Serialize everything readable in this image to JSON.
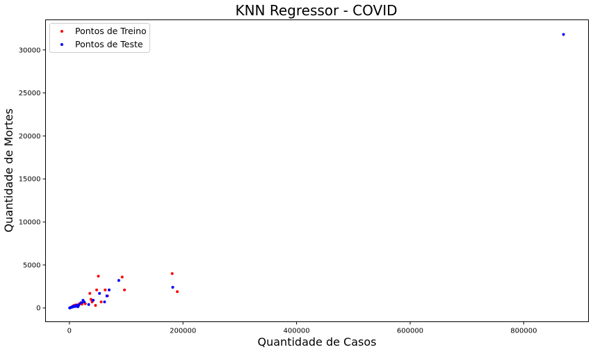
{
  "chart_data": {
    "type": "scatter",
    "title": "KNN Regressor - COVID",
    "xlabel": "Quantidade de Casos",
    "ylabel": "Quantidade de Mortes",
    "xlim": [
      -42000,
      914000
    ],
    "ylim": [
      -1600,
      33500
    ],
    "xticks": [
      0,
      200000,
      400000,
      600000,
      800000
    ],
    "xtick_labels": [
      "0",
      "200000",
      "400000",
      "600000",
      "800000"
    ],
    "yticks": [
      0,
      5000,
      10000,
      15000,
      20000,
      25000,
      30000
    ],
    "ytick_labels": [
      "0",
      "5000",
      "10000",
      "15000",
      "20000",
      "25000",
      "30000"
    ],
    "grid": false,
    "legend_position": "top-left",
    "series": [
      {
        "name": "Pontos de Treino",
        "color": "#ff0000",
        "points": [
          [
            1000,
            20
          ],
          [
            2000,
            50
          ],
          [
            3000,
            80
          ],
          [
            4000,
            100
          ],
          [
            5000,
            150
          ],
          [
            6000,
            120
          ],
          [
            7000,
            250
          ],
          [
            8000,
            200
          ],
          [
            9000,
            300
          ],
          [
            10000,
            280
          ],
          [
            11000,
            350
          ],
          [
            12000,
            300
          ],
          [
            14000,
            350
          ],
          [
            16000,
            250
          ],
          [
            18000,
            500
          ],
          [
            20000,
            600
          ],
          [
            22000,
            450
          ],
          [
            25000,
            700
          ],
          [
            28000,
            500
          ],
          [
            36000,
            1700
          ],
          [
            38000,
            1000
          ],
          [
            40000,
            700
          ],
          [
            46000,
            300
          ],
          [
            48000,
            2100
          ],
          [
            51000,
            3700
          ],
          [
            56000,
            700
          ],
          [
            63000,
            2100
          ],
          [
            67000,
            1400
          ],
          [
            93000,
            3600
          ],
          [
            97000,
            2100
          ],
          [
            181000,
            4000
          ],
          [
            190000,
            1900
          ]
        ]
      },
      {
        "name": "Pontos de Teste",
        "color": "#0000ff",
        "points": [
          [
            500,
            10
          ],
          [
            1500,
            30
          ],
          [
            2500,
            60
          ],
          [
            3500,
            90
          ],
          [
            4500,
            110
          ],
          [
            6000,
            180
          ],
          [
            7500,
            150
          ],
          [
            9000,
            220
          ],
          [
            11000,
            180
          ],
          [
            13000,
            300
          ],
          [
            15000,
            150
          ],
          [
            17000,
            400
          ],
          [
            21000,
            600
          ],
          [
            24000,
            900
          ],
          [
            26000,
            700
          ],
          [
            34000,
            400
          ],
          [
            42000,
            900
          ],
          [
            53000,
            1700
          ],
          [
            62000,
            700
          ],
          [
            66000,
            1400
          ],
          [
            70000,
            2100
          ],
          [
            87000,
            3200
          ],
          [
            182000,
            2400
          ],
          [
            870000,
            31800
          ]
        ]
      }
    ]
  }
}
